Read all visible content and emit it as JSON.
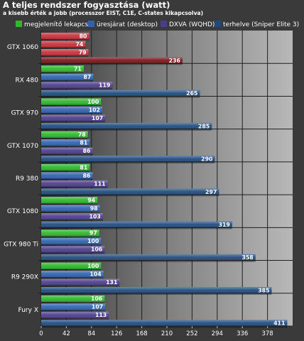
{
  "header": {
    "title": "A teljes rendszer fogyasztása (watt)",
    "subtitle": "a kisebb érték a jobb (processzor EIST, C1E, C-states kikapcsolva)"
  },
  "colors": {
    "background": "#3a3a3a",
    "plot_bg_dark": "#333333",
    "plot_bg_light": "#b8b8b8",
    "gtx1060_highlight": "#c8303a",
    "gtx1060_highlight_dark": "#7a1418"
  },
  "chart_data": {
    "type": "bar",
    "orientation": "horizontal",
    "title": "A teljes rendszer fogyasztása (watt)",
    "subtitle": "a kisebb érték a jobb (processzor EIST, C1E, C-states kikapcsolva)",
    "categories": [
      "GTX 1060",
      "RX 480",
      "GTX 970",
      "GTX 1070",
      "R9 380",
      "GTX 1080",
      "GTX 980 Ti",
      "R9 290X",
      "Fury X"
    ],
    "series": [
      {
        "name": "megjelenítő lekapcs.",
        "color": "#2db82d",
        "values": [
          80,
          71,
          100,
          78,
          81,
          94,
          97,
          100,
          106
        ]
      },
      {
        "name": "üresjárat (desktop)",
        "color": "#2f63b0",
        "values": [
          74,
          87,
          102,
          81,
          86,
          98,
          100,
          104,
          107
        ]
      },
      {
        "name": "DXVA (WQHD)",
        "color": "#4c3d8c",
        "values": [
          79,
          119,
          107,
          86,
          111,
          103,
          106,
          131,
          113
        ]
      },
      {
        "name": "terhelve (Sniper Elite 3)",
        "color": "#1e4a7e",
        "values": [
          236,
          265,
          285,
          290,
          297,
          319,
          358,
          385,
          411
        ]
      }
    ],
    "xlim": [
      0,
      420
    ],
    "xticks": [
      0,
      42,
      84,
      126,
      168,
      210,
      252,
      294,
      336,
      378
    ],
    "grid": true,
    "legend": "top"
  }
}
